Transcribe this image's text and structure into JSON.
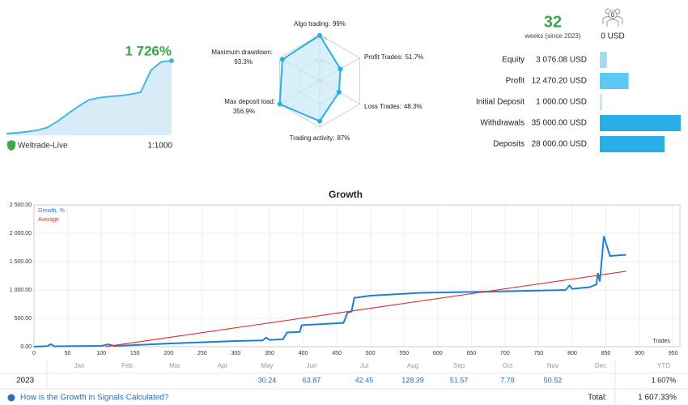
{
  "summary": {
    "growth": "1 726%",
    "broker": "Weltrade-Live",
    "leverage": "1:1000",
    "weeks": "32",
    "weeks_label": "weeks (since 2023)",
    "subscribers": "0",
    "subscribers_funds": "0 USD"
  },
  "chart_data": [
    {
      "type": "sparkline",
      "values": [
        0,
        20,
        45,
        80,
        150,
        300,
        480,
        650,
        800,
        850,
        880,
        900,
        930,
        980,
        1500,
        1700,
        1726
      ],
      "color": "#4ab3e0",
      "fill": "#d8ecf8"
    },
    {
      "type": "radar",
      "axes": [
        "Algo trading:",
        "Profit Trades:",
        "Loss Trades:",
        "Trading activity:",
        "Max deposit load:",
        "Maximum drawdown:"
      ],
      "values": [
        99,
        51.7,
        48.3,
        87,
        356.9,
        93.3
      ],
      "value_labels": [
        "99%",
        "51.7%",
        "48.3%",
        "87%",
        "356.9%",
        "93.3%"
      ],
      "rlim": [
        0,
        100
      ],
      "rticks": [
        {
          "value": 100,
          "label": "100+%"
        },
        {
          "value": 50,
          "label": "50%"
        },
        {
          "value": 0,
          "label": "0%"
        }
      ],
      "color": "#29aee8",
      "fill": "#c9eaf8"
    },
    {
      "type": "hbar",
      "categories": [
        "Equity",
        "Profit",
        "Initial Deposit",
        "Withdrawals",
        "Deposits"
      ],
      "values": [
        3076.08,
        12470.2,
        1000,
        35000,
        28000
      ],
      "value_labels": [
        "3 076.08 USD",
        "12 470.20 USD",
        "1 000.00 USD",
        "35 000.00 USD",
        "28 000.00 USD"
      ],
      "colors": [
        "#a8d8f0",
        "#5bc8f5",
        "#c4e6f6",
        "#29aee8",
        "#29aee8"
      ]
    },
    {
      "type": "line",
      "title": "Growth",
      "xlabel": "Trades",
      "grid": true,
      "xlim": [
        0,
        960
      ],
      "ylim": [
        0,
        2500
      ],
      "xticks": [
        0,
        50,
        100,
        150,
        200,
        250,
        300,
        350,
        400,
        450,
        500,
        550,
        600,
        650,
        700,
        750,
        800,
        850,
        900,
        950
      ],
      "yticks": [
        {
          "value": 0,
          "label": "0.00"
        },
        {
          "value": 500,
          "label": "500.00"
        },
        {
          "value": 1000,
          "label": "1 000.00"
        },
        {
          "value": 1500,
          "label": "1 500.00"
        },
        {
          "value": 2000,
          "label": "2 000.00"
        },
        {
          "value": 2500,
          "label": "2 500.00"
        }
      ],
      "series": [
        {
          "name": "Growth, %",
          "color": "#1e7fd0",
          "x": [
            0,
            20,
            25,
            30,
            100,
            110,
            120,
            200,
            300,
            340,
            345,
            350,
            370,
            376,
            395,
            398,
            460,
            466,
            472,
            476,
            500,
            574,
            670,
            790,
            796,
            800,
            826,
            836,
            838,
            841,
            847,
            856,
            880
          ],
          "values": [
            0,
            10,
            45,
            8,
            15,
            40,
            12,
            55,
            100,
            110,
            160,
            120,
            130,
            250,
            260,
            380,
            420,
            600,
            620,
            860,
            900,
            950,
            970,
            1000,
            1080,
            1020,
            1050,
            1100,
            1300,
            1150,
            1950,
            1600,
            1620
          ]
        },
        {
          "name": "Average",
          "color": "#e03030",
          "x": [
            106,
            880
          ],
          "values": [
            0,
            1330
          ]
        }
      ]
    }
  ],
  "table": {
    "columns": [
      "Jan",
      "Feb",
      "Mar",
      "Apr",
      "May",
      "Jun",
      "Jul",
      "Aug",
      "Sep",
      "Oct",
      "Nov",
      "Dec",
      "YTD"
    ],
    "year": "2023",
    "values": [
      null,
      null,
      null,
      null,
      "30.24",
      "63.87",
      "42.45",
      "128.39",
      "51.57",
      "7.78",
      "50.52",
      null,
      "1 607%"
    ],
    "link": "How is the Growth in Signals Calculated?",
    "total_label": "Total:",
    "total": "1 607.33%"
  }
}
